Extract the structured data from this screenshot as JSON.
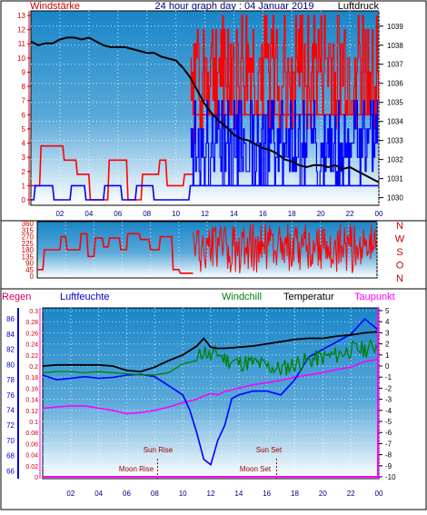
{
  "header": {
    "title": "24 hour graph day : 04 Januar 2019",
    "left_label": "Windstärke",
    "right_label": "Luftdruck"
  },
  "colors": {
    "bg_top": "#1a86c8",
    "bg_bottom": "#ffffff",
    "wind_gust": "#ff0000",
    "wind_avg": "#0000ff",
    "pressure": "#000000",
    "wind_dir": "#ff0000",
    "rain": "#ff00ff",
    "humidity": "#0000ff",
    "windchill": "#008000",
    "temperature": "#000000",
    "dewpoint": "#ff00ff",
    "label_red": "#cc0000",
    "astro_text": "#990000",
    "axis_text": "#00007f"
  },
  "chart_data": [
    {
      "type": "line",
      "panel": "wind-pressure",
      "x_ticks": [
        "02",
        "04",
        "06",
        "08",
        "10",
        "12",
        "14",
        "16",
        "18",
        "20",
        "22",
        "00"
      ],
      "x_hours": [
        2,
        4,
        6,
        8,
        10,
        12,
        14,
        16,
        18,
        20,
        22,
        24
      ],
      "xlim": [
        0,
        24
      ],
      "left_axis": {
        "label": "Windstärke",
        "ticks": [
          "0",
          "1",
          "2",
          "3",
          "4",
          "5",
          "6",
          "7",
          "8",
          "9",
          "10",
          "11",
          "12",
          "13"
        ],
        "ylim": [
          0,
          13
        ]
      },
      "right_axis": {
        "label": "Luftdruck",
        "ticks": [
          "1030",
          "1031",
          "1032",
          "1033",
          "1034",
          "1035",
          "1036",
          "1037",
          "1038",
          "1039"
        ],
        "ylim": [
          1029.6,
          1039.8
        ]
      },
      "series": [
        {
          "role": "pressure",
          "x": [
            0,
            0.5,
            1,
            1.5,
            2,
            2.5,
            3,
            3.5,
            4,
            4.5,
            5,
            5.5,
            6,
            6.5,
            7,
            7.5,
            8,
            8.5,
            9,
            9.5,
            10,
            10.5,
            11,
            11.5,
            12,
            12.5,
            13,
            13.5,
            14,
            14.5,
            15,
            15.5,
            16,
            16.5,
            17,
            17.5,
            18,
            18.5,
            19,
            19.5,
            20,
            20.5,
            21,
            21.5,
            22,
            22.5,
            23,
            23.5,
            24
          ],
          "y": [
            1038.2,
            1038.0,
            1038.1,
            1038.1,
            1038.3,
            1038.4,
            1038.4,
            1038.3,
            1038.4,
            1038.2,
            1038.0,
            1037.9,
            1037.9,
            1037.9,
            1037.8,
            1037.7,
            1037.6,
            1037.6,
            1037.4,
            1037.3,
            1037.2,
            1036.8,
            1036.3,
            1035.6,
            1034.9,
            1034.4,
            1034.0,
            1033.7,
            1033.3,
            1033.1,
            1033.0,
            1032.8,
            1032.6,
            1032.5,
            1032.3,
            1032.0,
            1031.9,
            1031.7,
            1031.6,
            1031.7,
            1031.7,
            1031.6,
            1031.7,
            1031.5,
            1031.6,
            1031.4,
            1031.2,
            1031.0,
            1030.8
          ]
        },
        {
          "role": "wind_gust",
          "x": [
            0,
            0.6,
            0.7,
            2.2,
            2.3,
            3.1,
            3.2,
            4.0,
            4.1,
            5.3,
            5.4,
            6.6,
            6.7,
            7.6,
            7.7,
            8.8,
            8.9,
            9.3,
            9.4,
            10.5,
            10.6,
            11.2,
            11.3,
            24
          ],
          "y": [
            1,
            1,
            3.8,
            3.8,
            2.8,
            2.8,
            1.8,
            1.8,
            0,
            0,
            2.8,
            2.8,
            0,
            0,
            1.8,
            1.8,
            2.8,
            2.8,
            1,
            1,
            1.8,
            1.8,
            6,
            6
          ]
        },
        {
          "role": "wind_avg",
          "x": [
            0,
            0.2,
            0.3,
            1.5,
            1.6,
            2.7,
            2.8,
            3.7,
            3.8,
            5.0,
            5.1,
            6.2,
            6.3,
            7.2,
            7.3,
            8.4,
            8.5,
            9.8,
            9.9,
            10.9,
            11.0,
            24
          ],
          "y": [
            0,
            0,
            1,
            1,
            0,
            0,
            1,
            1,
            0,
            0,
            1,
            1,
            0,
            0,
            1,
            1,
            0,
            0,
            0,
            0,
            1,
            1
          ]
        }
      ]
    },
    {
      "type": "line",
      "panel": "wind-direction",
      "x_ticks": [
        "02",
        "04",
        "06",
        "08",
        "10",
        "12",
        "14",
        "16",
        "18",
        "20",
        "22",
        "00"
      ],
      "xlim": [
        0,
        24
      ],
      "left_axis": {
        "ticks": [
          "0",
          "45",
          "90",
          "135",
          "180",
          "225",
          "270",
          "315",
          "360"
        ],
        "ylim": [
          0,
          360
        ]
      },
      "right_axis": {
        "ticks": [
          "N",
          "W",
          "S",
          "O",
          "N"
        ]
      },
      "series": [
        {
          "role": "wind_dir",
          "x": [
            0,
            0.4,
            0.5,
            1.6,
            1.7,
            2.0,
            2.1,
            3.0,
            3.1,
            3.5,
            3.6,
            4.0,
            4.1,
            4.6,
            4.7,
            5.0,
            5.1,
            5.8,
            5.9,
            6.3,
            6.4,
            7.2,
            7.3,
            7.9,
            8.0,
            8.6,
            8.7,
            9.5,
            9.6,
            10.0,
            10.1,
            11.0
          ],
          "y": [
            45,
            45,
            180,
            180,
            270,
            270,
            180,
            180,
            290,
            290,
            135,
            135,
            260,
            260,
            200,
            200,
            260,
            260,
            180,
            180,
            290,
            290,
            250,
            250,
            180,
            180,
            270,
            270,
            45,
            45,
            20,
            20
          ]
        }
      ]
    },
    {
      "type": "line",
      "panel": "temperature-humidity",
      "x_ticks": [
        "02",
        "04",
        "06",
        "08",
        "10",
        "12",
        "14",
        "16",
        "18",
        "20",
        "22",
        "00"
      ],
      "xlim": [
        0,
        24
      ],
      "legend": [
        "Regen",
        "Luftfeuchte",
        "Windchill",
        "Temperatur",
        "Taupunkt"
      ],
      "left_axis_rain": {
        "label": "Regen",
        "ticks": [
          "0",
          "0.02",
          "0.04",
          "0.06",
          "0.08",
          "0.1",
          "0.12",
          "0.14",
          "0.16",
          "0.18",
          "0.2",
          "0.22",
          "0.24",
          "0.26",
          "0.28",
          "0.3"
        ],
        "ylim": [
          0,
          0.3
        ]
      },
      "left_axis_humidity": {
        "label": "Luftfeuchte",
        "ticks": [
          "66",
          "68",
          "70",
          "72",
          "74",
          "76",
          "78",
          "80",
          "82",
          "84",
          "86"
        ],
        "ylim": [
          65.2,
          87.1
        ]
      },
      "right_axis": {
        "ticks": [
          "5",
          "4",
          "3",
          "2",
          "1",
          "0",
          "-1",
          "-2",
          "-3",
          "-4",
          "-5",
          "-6",
          "-7",
          "-8",
          "-9",
          "-10"
        ],
        "ylim": [
          -10,
          5
        ]
      },
      "astro": {
        "sun_rise": "Sun Rise",
        "sun_set": "Sun Set",
        "moon_rise": "Moon Rise",
        "moon_set": "Moon Set"
      },
      "series": [
        {
          "role": "temperature",
          "x": [
            0,
            1,
            2,
            3,
            4,
            5,
            6,
            7,
            8,
            9,
            10,
            11,
            11.5,
            12,
            12.5,
            13,
            14,
            15,
            16,
            17,
            18,
            19,
            20,
            21,
            22,
            23,
            24
          ],
          "y": [
            0.0,
            0.1,
            0.1,
            0.1,
            0.1,
            0.0,
            -0.4,
            -0.5,
            -0.1,
            0.5,
            1.0,
            1.8,
            2.5,
            1.7,
            1.6,
            1.6,
            1.7,
            1.8,
            2.0,
            2.2,
            2.4,
            2.5,
            2.5,
            2.7,
            2.8,
            3.0,
            3.1
          ]
        },
        {
          "role": "windchill",
          "x": [
            0,
            1,
            2,
            3,
            4,
            5,
            6,
            7,
            8,
            9,
            10,
            11,
            11.5,
            12,
            12.5,
            13,
            14,
            15,
            16,
            17,
            18,
            19,
            20,
            21,
            22,
            23,
            24
          ],
          "y": [
            -0.6,
            -0.5,
            -0.5,
            -0.6,
            -0.5,
            -0.6,
            -0.7,
            -0.8,
            -0.8,
            -0.6,
            0.2,
            0.5,
            1.5,
            0.8,
            1.2,
            0.6,
            0.3,
            0.3,
            0.0,
            -0.3,
            0.2,
            0.5,
            0.8,
            1.0,
            1.5,
            1.5,
            1.9
          ]
        },
        {
          "role": "dewpoint",
          "x": [
            0,
            1,
            2,
            3,
            4,
            5,
            6,
            7,
            8,
            9,
            10,
            11,
            11.5,
            12,
            12.5,
            13,
            14,
            15,
            16,
            17,
            18,
            19,
            20,
            21,
            22,
            23,
            24
          ],
          "y": [
            -3.8,
            -3.7,
            -3.6,
            -3.6,
            -3.8,
            -4.0,
            -4.3,
            -4.2,
            -4.0,
            -3.7,
            -3.3,
            -3.0,
            -2.7,
            -2.5,
            -2.6,
            -2.3,
            -2.0,
            -1.7,
            -1.5,
            -1.3,
            -1.0,
            -0.8,
            -0.6,
            -0.3,
            -0.1,
            0.4,
            0.6
          ]
        },
        {
          "role": "humidity",
          "x": [
            0,
            1,
            2,
            3,
            4,
            5,
            6,
            7,
            8,
            9,
            10,
            10.5,
            11,
            11.5,
            12,
            12.5,
            13,
            13.5,
            14,
            15,
            16,
            17,
            18,
            19,
            20,
            21,
            22,
            23,
            24
          ],
          "y": [
            78.6,
            78.0,
            78.2,
            78.4,
            78.2,
            78.3,
            78.6,
            78.7,
            78.4,
            77.2,
            76.0,
            74.0,
            71.0,
            67.5,
            66.8,
            70.0,
            72.0,
            75.5,
            76.0,
            76.5,
            76.5,
            76.0,
            78.0,
            81.0,
            82.0,
            83.0,
            84.0,
            86.0,
            84.5
          ]
        }
      ]
    }
  ]
}
